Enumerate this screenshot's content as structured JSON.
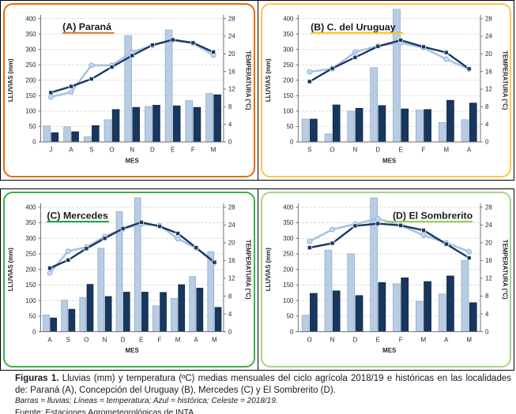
{
  "figure": {
    "caption_bold": "Figuras 1.",
    "caption_text": " Lluvias (mm) y temperatura (ºC) medias mensuales del ciclo agrícola 2018/19 e históricas en las localidades de: Paraná (A), Concepción del Uruguay (B), Mercedes (C) y El Sombrerito (D).",
    "caption_note_italic": "Barras = lluvias; Líneas = temperatura; Azul = histórica; Celeste = 2018/19.",
    "caption_source": "Fuente: Estaciones Agrometeorológicas de INTA."
  },
  "colors": {
    "bar_celeste": "#B8CCE4",
    "bar_celeste_edge": "#8EABD0",
    "bar_azul": "#17375E",
    "bar_azul_edge": "#0F2743",
    "line_celeste": "#A9C2E0",
    "marker_celeste_fill": "#C6D9F1",
    "marker_celeste_edge": "#8FAFD4",
    "line_azul": "#17375E",
    "marker_azul_edge": "#E8EEF5",
    "grid": "#D9D9D9",
    "axis": "#707070",
    "tick_text": "#262626",
    "title_text": "#1a1a1a",
    "frame_black": "#000000"
  },
  "chart_data": [
    {
      "type": "bar",
      "panel": "A",
      "title": "(A) Paraná",
      "title_align": "left",
      "title_offset": 28,
      "frame_color": "#E36C0A",
      "underline_color": "#E36C0A",
      "xlabel": "MES",
      "ylabel_left": "LLUVIAS (mm)",
      "ylabel_right": "TEMPERATURA (°C)",
      "ylim_left": [
        0,
        400
      ],
      "ytick_left": 50,
      "ylim_right": [
        0,
        28
      ],
      "ytick_right": 4,
      "grid": "dashed",
      "legend_position": "none",
      "categories": [
        "J",
        "A",
        "S",
        "O",
        "N",
        "D",
        "E",
        "F",
        "M"
      ],
      "series": [
        {
          "name": "Lluvias 2018/19",
          "kind": "bar",
          "style": "celeste",
          "values": [
            52,
            49,
            17,
            72,
            345,
            115,
            363,
            134,
            157
          ]
        },
        {
          "name": "Lluvias histórica",
          "kind": "bar",
          "style": "azul",
          "values": [
            30,
            33,
            53,
            105,
            112,
            119,
            117,
            112,
            153
          ]
        },
        {
          "name": "Temperatura 2018/19",
          "kind": "line",
          "style": "celeste",
          "values": [
            10.2,
            11.3,
            17.4,
            17.4,
            20.4,
            21.9,
            23.1,
            22.4,
            19.7
          ]
        },
        {
          "name": "Temperatura histórica",
          "kind": "line",
          "style": "azul",
          "values": [
            11.2,
            12.6,
            14.3,
            17.0,
            19.6,
            22.0,
            23.2,
            22.5,
            20.4
          ]
        }
      ]
    },
    {
      "type": "bar",
      "panel": "B",
      "title": "(B) C. del Uruguay",
      "title_align": "left",
      "title_offset": 16,
      "frame_color": "#FFC54D",
      "underline_color": "#FFC000",
      "xlabel": "MES",
      "ylabel_left": "LLUVIAS (mm)",
      "ylabel_right": "TEMPERATURA (°C)",
      "ylim_left": [
        0,
        400
      ],
      "ytick_left": 50,
      "ylim_right": [
        0,
        28
      ],
      "ytick_right": 4,
      "grid": "dashed",
      "legend_position": "none",
      "categories": [
        "S",
        "O",
        "N",
        "D",
        "E",
        "F",
        "M",
        "A"
      ],
      "series": [
        {
          "name": "Lluvias 2018/19",
          "kind": "bar",
          "style": "celeste",
          "values": [
            74,
            26,
            100,
            241,
            430,
            103,
            63,
            72
          ]
        },
        {
          "name": "Lluvias histórica",
          "kind": "bar",
          "style": "azul",
          "values": [
            74,
            120,
            109,
            118,
            107,
            105,
            135,
            126
          ]
        },
        {
          "name": "Temperatura 2018/19",
          "kind": "line",
          "style": "celeste",
          "values": [
            15.9,
            16.6,
            20.4,
            21.8,
            22.5,
            21.4,
            18.8,
            16.5
          ]
        },
        {
          "name": "Temperatura histórica",
          "kind": "line",
          "style": "azul",
          "values": [
            13.7,
            16.7,
            19.2,
            21.7,
            23.1,
            21.6,
            20.3,
            16.6
          ]
        }
      ]
    },
    {
      "type": "bar",
      "panel": "C",
      "title": "(C) Mercedes",
      "title_align": "left",
      "title_offset": 8,
      "frame_color": "#3CB04A",
      "underline_color": "#00A651",
      "xlabel": "MES",
      "ylabel_left": "LLUVIAS (mm)",
      "ylabel_right": "TEMPERATURA (°C)",
      "ylim_left": [
        0,
        400
      ],
      "ytick_left": 50,
      "ylim_right": [
        0,
        28
      ],
      "ytick_right": 4,
      "grid": "dashed",
      "legend_position": "none",
      "categories": [
        "A",
        "S",
        "O",
        "N",
        "D",
        "E",
        "F",
        "M",
        "A",
        "M"
      ],
      "series": [
        {
          "name": "Lluvias 2018/19",
          "kind": "bar",
          "style": "celeste",
          "values": [
            54,
            101,
            110,
            268,
            386,
            430,
            83,
            107,
            177,
            257
          ]
        },
        {
          "name": "Lluvias histórica",
          "kind": "bar",
          "style": "azul",
          "values": [
            44,
            72,
            152,
            113,
            127,
            127,
            126,
            151,
            140,
            78
          ]
        },
        {
          "name": "Temperatura 2018/19",
          "kind": "line",
          "style": "celeste",
          "values": [
            13.2,
            18.1,
            19.0,
            21.4,
            23.1,
            24.2,
            23.9,
            20.9,
            18.8,
            15.5
          ]
        },
        {
          "name": "Temperatura histórica",
          "kind": "line",
          "style": "azul",
          "values": [
            14.3,
            16.1,
            18.7,
            21.0,
            23.2,
            24.6,
            23.7,
            22.1,
            18.9,
            15.6
          ]
        }
      ]
    },
    {
      "type": "bar",
      "panel": "D",
      "title": "(D) El Sombrerito",
      "title_align": "right",
      "title_offset": 10,
      "frame_color": "#A8D08D",
      "underline_color": "#92D050",
      "xlabel": "MES",
      "ylabel_left": "LLUVIAS (mm)",
      "ylabel_right": "TEMPERATURA (°C)",
      "ylim_left": [
        0,
        400
      ],
      "ytick_left": 50,
      "ylim_right": [
        0,
        28
      ],
      "ytick_right": 4,
      "grid": "dashed",
      "legend_position": "none",
      "categories": [
        "O",
        "N",
        "D",
        "E",
        "F",
        "M",
        "A",
        "M"
      ],
      "series": [
        {
          "name": "Lluvias 2018/19",
          "kind": "bar",
          "style": "celeste",
          "values": [
            53,
            262,
            250,
            430,
            154,
            97,
            121,
            229
          ]
        },
        {
          "name": "Lluvias histórica",
          "kind": "bar",
          "style": "azul",
          "values": [
            123,
            131,
            116,
            158,
            173,
            161,
            179,
            93
          ]
        },
        {
          "name": "Temperatura 2018/19",
          "kind": "line",
          "style": "celeste",
          "values": [
            20.3,
            23.0,
            24.2,
            25.4,
            23.9,
            21.7,
            20.0,
            18.0
          ]
        },
        {
          "name": "Temperatura histórica",
          "kind": "line",
          "style": "azul",
          "values": [
            18.9,
            19.9,
            23.8,
            24.3,
            23.9,
            22.8,
            19.7,
            16.6
          ]
        }
      ]
    }
  ]
}
